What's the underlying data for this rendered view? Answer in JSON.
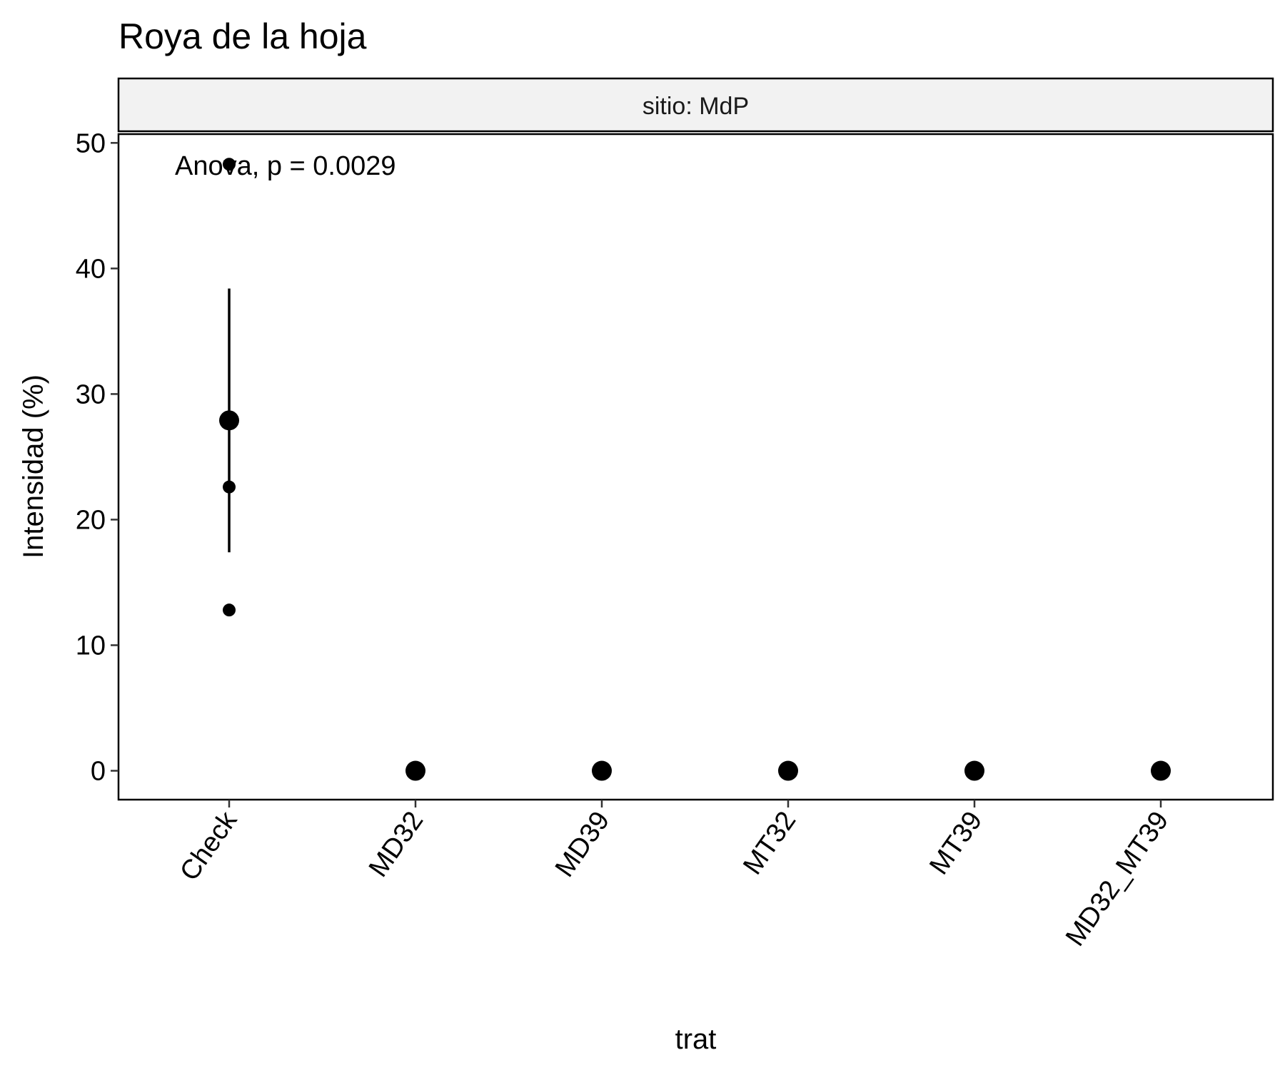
{
  "chart_data": {
    "type": "scatter",
    "title": "Roya de la hoja",
    "facet_label": "sitio: MdP",
    "xlabel": "trat",
    "ylabel": "Intensidad (%)",
    "annotation": "Anova, p = 0.0029",
    "categories": [
      "Check",
      "MD32",
      "MD39",
      "MT32",
      "MT39",
      "MD32_MT39"
    ],
    "ylim": [
      -2.3,
      50.7
    ],
    "yticks": [
      0,
      10,
      20,
      30,
      40,
      50
    ],
    "grid": false,
    "series": [
      {
        "kind": "raw-points",
        "points": [
          {
            "category": "Check",
            "y": 48.3
          },
          {
            "category": "Check",
            "y": 22.6
          },
          {
            "category": "Check",
            "y": 12.8
          }
        ]
      },
      {
        "kind": "mean",
        "values": [
          27.9,
          0,
          0,
          0,
          0,
          0
        ]
      },
      {
        "kind": "error-bar",
        "intervals": [
          {
            "category": "Check",
            "low": 17.4,
            "high": 38.4
          }
        ]
      }
    ],
    "colors": {
      "points": "#000000",
      "strip_fill": "#f2f2f2",
      "panel_border": "#000000"
    }
  }
}
